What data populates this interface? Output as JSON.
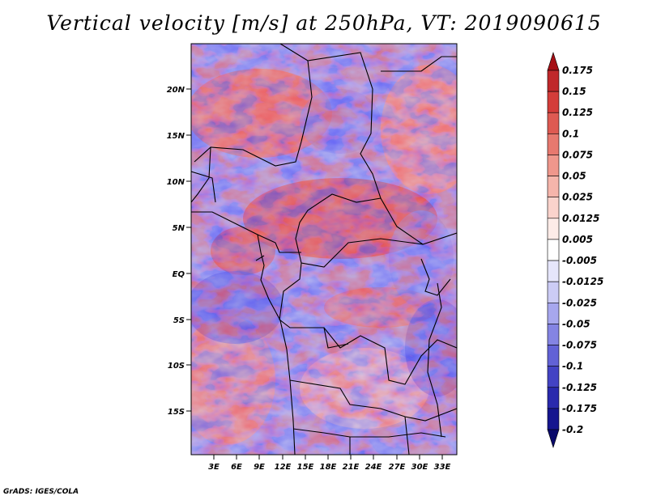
{
  "title": "Vertical velocity [m/s] at 250hPa, VT: 2019090615",
  "footer": "GrADS: IGES/COLA",
  "map": {
    "lat_labels": [
      "20N",
      "15N",
      "10N",
      "5N",
      "EQ",
      "5S",
      "10S",
      "15S"
    ],
    "lon_labels": [
      "3E",
      "6E",
      "9E",
      "12E",
      "15E",
      "18E",
      "21E",
      "24E",
      "27E",
      "30E",
      "33E"
    ]
  },
  "colorbar": {
    "levels": [
      "0.175",
      "0.15",
      "0.125",
      "0.1",
      "0.075",
      "0.05",
      "0.025",
      "0.0125",
      "0.005",
      "-0.005",
      "-0.0125",
      "-0.025",
      "-0.05",
      "-0.075",
      "-0.1",
      "-0.125",
      "-0.175",
      "-0.2"
    ],
    "colors": [
      "#a50f15",
      "#c0282a",
      "#d43d3a",
      "#de5a52",
      "#e7796f",
      "#ef978c",
      "#f5b5ab",
      "#fad3cc",
      "#fdece8",
      "#ffffff",
      "#e6e6fb",
      "#ccccf5",
      "#a7a7ee",
      "#8484e3",
      "#6262d6",
      "#4343c4",
      "#2929ad",
      "#15158f",
      "#0a0a6b"
    ]
  },
  "colors": {
    "positive": "#d43d3a",
    "negative": "#4a4ad0",
    "neutral": "#ffffff",
    "borders": "#000000"
  }
}
